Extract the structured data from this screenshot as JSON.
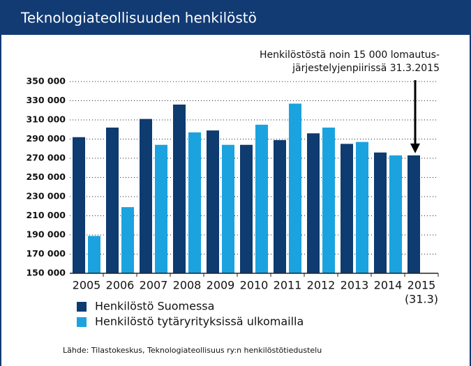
{
  "chart_data": {
    "type": "bar",
    "title": "Teknologiateollisuuden henkilöstö",
    "annotation": [
      "Henkilöstöstä noin 15 000  lomautus-",
      "järjestelyjenpiirissä 31.3.2015"
    ],
    "categories": [
      "2005",
      "2006",
      "2007",
      "2008",
      "2009",
      "2010",
      "2011",
      "2012",
      "2013",
      "2014",
      "2015"
    ],
    "category_note": "(31.3)",
    "series": [
      {
        "name": "Henkilöstö Suomessa",
        "color": "#0e3b70",
        "values": [
          292000,
          302000,
          311000,
          326000,
          299000,
          284000,
          289000,
          296000,
          285000,
          276000,
          273000
        ]
      },
      {
        "name": "Henkilöstö tytäryrityksissä ulkomailla",
        "color": "#1ba3df",
        "values": [
          189000,
          219000,
          284000,
          297000,
          284000,
          305000,
          327000,
          302000,
          287000,
          273000,
          null
        ]
      }
    ],
    "ylim": [
      150000,
      350000
    ],
    "yticks": [
      {
        "value": 150000,
        "label": "150 000"
      },
      {
        "value": 170000,
        "label": "170 000"
      },
      {
        "value": 190000,
        "label": "190 000"
      },
      {
        "value": 210000,
        "label": "210 000"
      },
      {
        "value": 230000,
        "label": "230 000"
      },
      {
        "value": 250000,
        "label": "250 000"
      },
      {
        "value": 270000,
        "label": "270 000"
      },
      {
        "value": 290000,
        "label": "290 000"
      },
      {
        "value": 310000,
        "label": "310 000"
      },
      {
        "value": 330000,
        "label": "330 000"
      },
      {
        "value": 350000,
        "label": "350 000"
      }
    ],
    "grid": true,
    "source": "Lähde: Tilastokeskus, Teknologiateollisuus ry:n henkilöstötiedustelu"
  }
}
